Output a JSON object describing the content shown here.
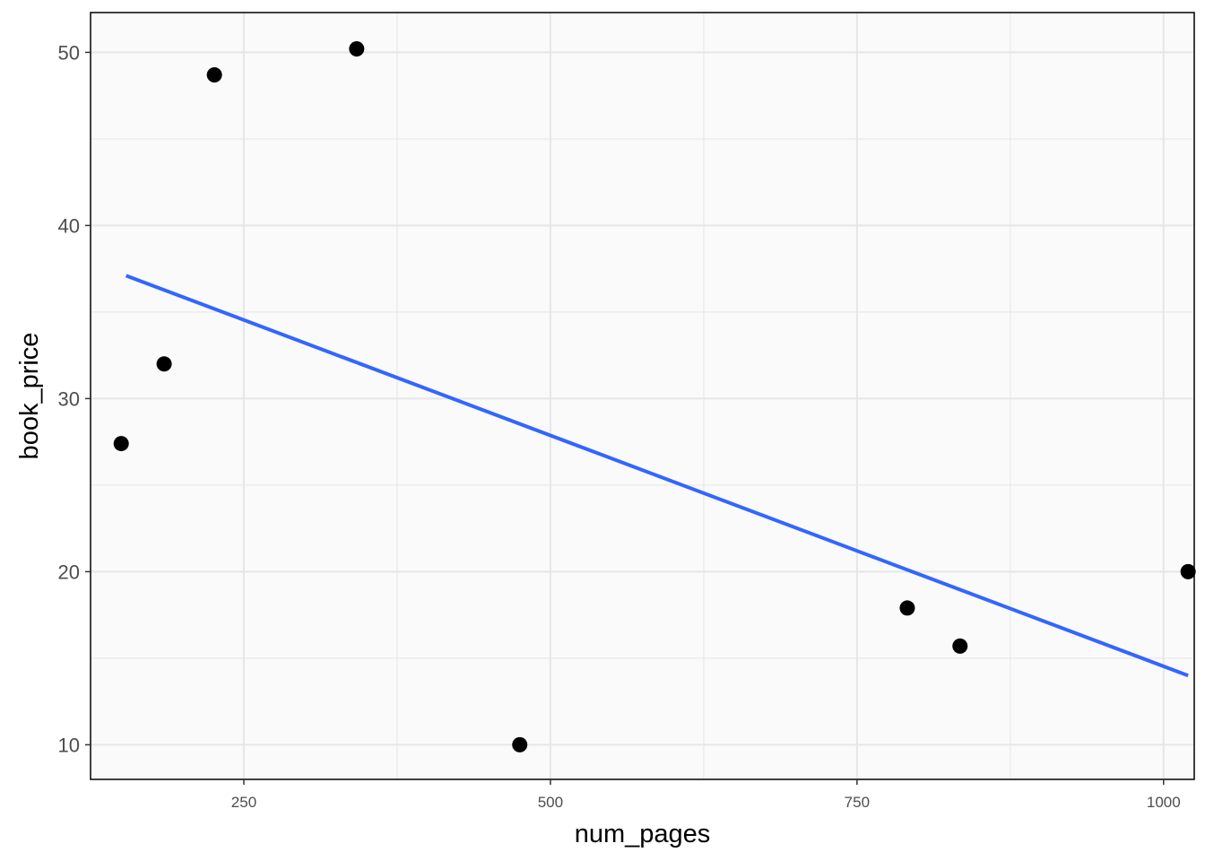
{
  "chart_data": {
    "type": "scatter",
    "title": "",
    "xlabel": "num_pages",
    "ylabel": "book_price",
    "xlim": [
      125,
      1025
    ],
    "ylim": [
      8,
      52.3
    ],
    "x_ticks": [
      250,
      500,
      750,
      1000
    ],
    "x_minor": [
      125,
      375,
      625,
      875
    ],
    "y_ticks": [
      10,
      20,
      30,
      40,
      50
    ],
    "y_minor": [
      15,
      25,
      35,
      45
    ],
    "x_tick_labels": [
      "250",
      "500",
      "750",
      "1000"
    ],
    "y_tick_labels": [
      "10",
      "20",
      "30",
      "40",
      "50"
    ],
    "grid": true,
    "legend": "none",
    "points": [
      {
        "x": 150,
        "y": 27.4
      },
      {
        "x": 185,
        "y": 32.0
      },
      {
        "x": 226,
        "y": 48.7
      },
      {
        "x": 342,
        "y": 50.2
      },
      {
        "x": 475,
        "y": 10.0
      },
      {
        "x": 791,
        "y": 17.9
      },
      {
        "x": 834,
        "y": 15.7
      },
      {
        "x": 1020,
        "y": 20.0
      }
    ],
    "trend_line": {
      "type": "linear",
      "x": [
        154,
        1020
      ],
      "y": [
        37.1,
        14.0
      ]
    },
    "colors": {
      "points": "#000000",
      "trend_line": "#3366ff",
      "panel_background": "#fafafa",
      "grid": "#e6e6e6",
      "frame": "#000000"
    }
  }
}
